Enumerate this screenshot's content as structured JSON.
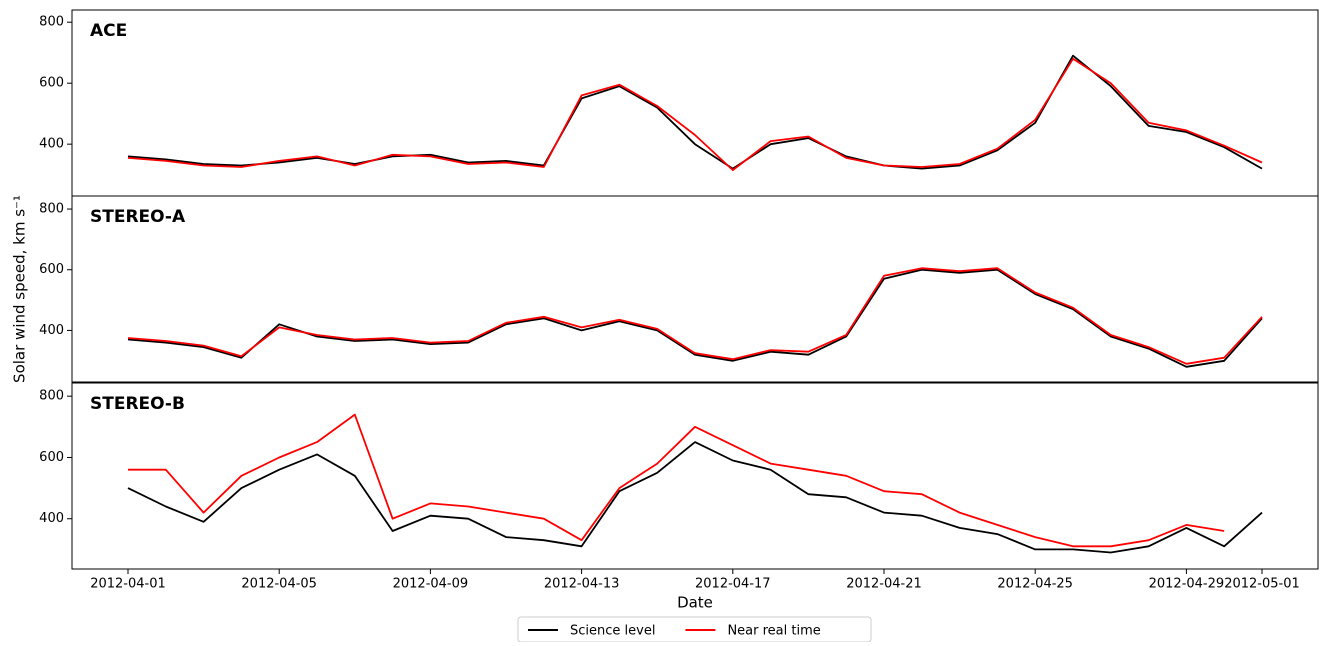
{
  "chart_data": [
    {
      "type": "line",
      "title": "ACE",
      "x": [
        "2012-04-01",
        "2012-04-02",
        "2012-04-03",
        "2012-04-04",
        "2012-04-05",
        "2012-04-06",
        "2012-04-07",
        "2012-04-08",
        "2012-04-09",
        "2012-04-10",
        "2012-04-11",
        "2012-04-12",
        "2012-04-13",
        "2012-04-14",
        "2012-04-15",
        "2012-04-16",
        "2012-04-17",
        "2012-04-18",
        "2012-04-19",
        "2012-04-20",
        "2012-04-21",
        "2012-04-22",
        "2012-04-23",
        "2012-04-24",
        "2012-04-25",
        "2012-04-26",
        "2012-04-27",
        "2012-04-28",
        "2012-04-29",
        "2012-04-30",
        "2012-05-01"
      ],
      "xlim": [
        "2012-04-01",
        "2012-05-01"
      ],
      "ylim": [
        230,
        840
      ],
      "yticks": [
        400,
        600,
        800
      ],
      "series": [
        {
          "color": "#000000",
          "values": [
            360,
            350,
            335,
            330,
            340,
            355,
            335,
            360,
            365,
            340,
            345,
            330,
            550,
            590,
            520,
            400,
            320,
            400,
            420,
            360,
            330,
            320,
            330,
            380,
            470,
            690,
            590,
            460,
            440,
            390,
            320
          ]
        },
        {
          "color": "#ff0000",
          "values": [
            355,
            345,
            330,
            325,
            345,
            360,
            330,
            365,
            360,
            335,
            340,
            325,
            560,
            595,
            525,
            430,
            315,
            410,
            425,
            355,
            330,
            325,
            335,
            385,
            480,
            680,
            600,
            470,
            445,
            395,
            340
          ]
        }
      ]
    },
    {
      "type": "line",
      "title": "STEREO-A",
      "ylabel": "Solar wind speed, km s⁻¹",
      "x": [
        "2012-04-01",
        "2012-04-02",
        "2012-04-03",
        "2012-04-04",
        "2012-04-05",
        "2012-04-06",
        "2012-04-07",
        "2012-04-08",
        "2012-04-09",
        "2012-04-10",
        "2012-04-11",
        "2012-04-12",
        "2012-04-13",
        "2012-04-14",
        "2012-04-15",
        "2012-04-16",
        "2012-04-17",
        "2012-04-18",
        "2012-04-19",
        "2012-04-20",
        "2012-04-21",
        "2012-04-22",
        "2012-04-23",
        "2012-04-24",
        "2012-04-25",
        "2012-04-26",
        "2012-04-27",
        "2012-04-28",
        "2012-04-29",
        "2012-04-30",
        "2012-05-01"
      ],
      "xlim": [
        "2012-04-01",
        "2012-05-01"
      ],
      "ylim": [
        230,
        843
      ],
      "yticks": [
        400,
        600,
        800
      ],
      "series": [
        {
          "color": "#000000",
          "values": [
            370,
            360,
            345,
            310,
            420,
            380,
            365,
            370,
            355,
            360,
            420,
            440,
            400,
            430,
            400,
            320,
            300,
            330,
            320,
            380,
            570,
            600,
            590,
            600,
            520,
            470,
            380,
            340,
            280,
            300,
            440
          ]
        },
        {
          "color": "#ff0000",
          "values": [
            375,
            365,
            350,
            315,
            410,
            385,
            370,
            375,
            360,
            365,
            425,
            445,
            410,
            435,
            405,
            325,
            305,
            335,
            330,
            385,
            580,
            605,
            595,
            605,
            525,
            475,
            385,
            345,
            290,
            310,
            445
          ]
        }
      ]
    },
    {
      "type": "line",
      "title": "STEREO-B",
      "xlabel": "Date",
      "x": [
        "2012-04-01",
        "2012-04-02",
        "2012-04-03",
        "2012-04-04",
        "2012-04-05",
        "2012-04-06",
        "2012-04-07",
        "2012-04-08",
        "2012-04-09",
        "2012-04-10",
        "2012-04-11",
        "2012-04-12",
        "2012-04-13",
        "2012-04-14",
        "2012-04-15",
        "2012-04-16",
        "2012-04-17",
        "2012-04-18",
        "2012-04-19",
        "2012-04-20",
        "2012-04-21",
        "2012-04-22",
        "2012-04-23",
        "2012-04-24",
        "2012-04-25",
        "2012-04-26",
        "2012-04-27",
        "2012-04-28",
        "2012-04-29",
        "2012-04-30",
        "2012-05-01"
      ],
      "xlim": [
        "2012-04-01",
        "2012-05-01"
      ],
      "xticks": [
        "2012-04-01",
        "2012-04-05",
        "2012-04-09",
        "2012-04-13",
        "2012-04-17",
        "2012-04-21",
        "2012-04-25",
        "2012-04-29",
        "2012-05-01"
      ],
      "ylim": [
        236,
        843
      ],
      "yticks": [
        400,
        600,
        800
      ],
      "series": [
        {
          "name": "Science level",
          "color": "#000000",
          "values": [
            500,
            440,
            390,
            500,
            560,
            610,
            540,
            360,
            410,
            400,
            340,
            330,
            310,
            490,
            550,
            650,
            590,
            560,
            480,
            470,
            420,
            410,
            370,
            350,
            300,
            300,
            290,
            310,
            370,
            310,
            420
          ]
        },
        {
          "name": "Near real time",
          "color": "#ff0000",
          "values": [
            560,
            560,
            420,
            540,
            600,
            650,
            740,
            400,
            450,
            440,
            420,
            400,
            330,
            500,
            580,
            700,
            640,
            580,
            560,
            540,
            490,
            480,
            420,
            380,
            340,
            310,
            310,
            330,
            380,
            360,
            null
          ]
        }
      ]
    }
  ]
}
